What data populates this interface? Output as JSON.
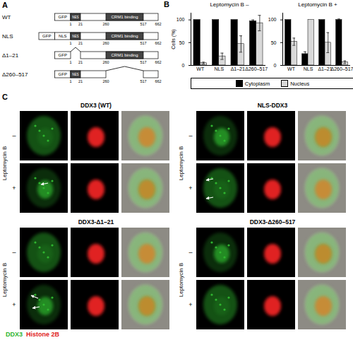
{
  "constructs_diagram": {
    "label": "A",
    "positions": [
      1,
      21,
      260,
      517,
      662
    ],
    "domains": [
      {
        "label": "NES",
        "start": 1,
        "end": 21
      },
      {
        "label": "CRM1 binding",
        "start": 260,
        "end": 517
      }
    ],
    "constructs": [
      {
        "name": "WT",
        "tags": [
          "GFP"
        ],
        "deletion": null
      },
      {
        "name": "NLS",
        "tags": [
          "GFP",
          "NLS"
        ],
        "deletion": null
      },
      {
        "name": "Δ1–21",
        "tags": [
          "GFP"
        ],
        "deletion": [
          1,
          21
        ]
      },
      {
        "name": "Δ260–517",
        "tags": [
          "GFP"
        ],
        "deletion": [
          260,
          517
        ]
      }
    ]
  },
  "chart_panel_label": "B",
  "chart_data": [
    {
      "type": "bar",
      "title": "Leptomycin B –",
      "y_label": "Cells (%)",
      "categories": [
        "WT",
        "NLS",
        "Δ1–21",
        "Δ260–517"
      ],
      "series": [
        {
          "name": "Cytoplasm",
          "color": "#000000",
          "values": [
            100,
            100,
            100,
            97
          ],
          "errors": [
            0,
            0,
            0,
            3
          ]
        },
        {
          "name": "Nucleus",
          "color": "#d9d9d9",
          "values": [
            5,
            20,
            47,
            93
          ],
          "errors": [
            2,
            7,
            18,
            17
          ]
        }
      ],
      "ylim": [
        0,
        115
      ],
      "yticks": [
        0,
        50,
        100
      ],
      "legend": "bottom"
    },
    {
      "type": "bar",
      "title": "Leptomycin B +",
      "categories": [
        "WT",
        "NLS",
        "Δ1–21",
        "Δ260–517"
      ],
      "series": [
        {
          "name": "Cytoplasm",
          "color": "#000000",
          "values": [
            100,
            25,
            100,
            100
          ],
          "errors": [
            0,
            5,
            0,
            2
          ]
        },
        {
          "name": "Nucleus",
          "color": "#d9d9d9",
          "values": [
            52,
            100,
            50,
            7
          ],
          "errors": [
            8,
            0,
            22,
            3
          ]
        }
      ],
      "ylim": [
        0,
        115
      ],
      "yticks": [
        0,
        50,
        100
      ]
    }
  ],
  "images": {
    "label": "C",
    "row_title": "Leptomycin B",
    "rows": [
      "–",
      "+"
    ],
    "panels": [
      "DDX3 (WT)",
      "NLS-DDX3",
      "DDX3-Δ1–21",
      "DDX3-Δ260–517"
    ],
    "channels": [
      {
        "name": "DDX3",
        "color": "#2fb52f"
      },
      {
        "name": "Histone 2B",
        "color": "#e02020"
      }
    ]
  }
}
